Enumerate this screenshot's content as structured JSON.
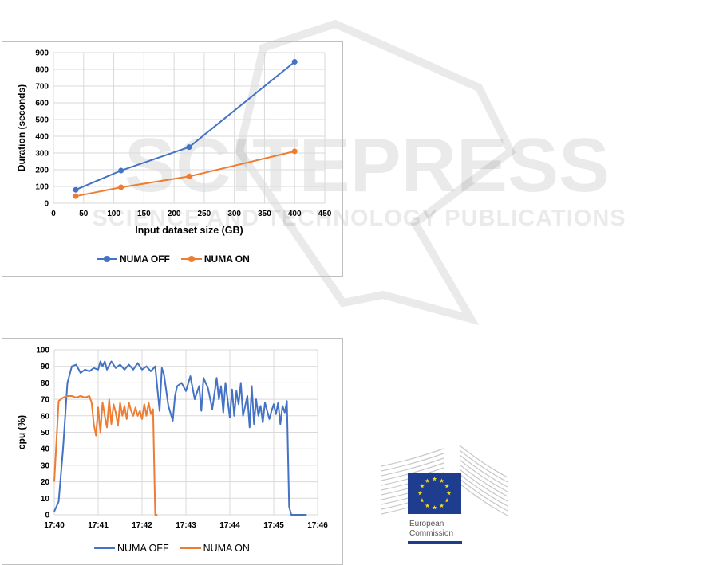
{
  "watermark": {
    "title": "SCITEPRESS",
    "subtitle": "SCIENCE AND TECHNOLOGY PUBLICATIONS"
  },
  "logo": {
    "line1": "European",
    "line2": "Commission",
    "flag_color": "#1f3d8f",
    "star_color": "#ffdd00"
  },
  "chart_data": [
    {
      "type": "line",
      "title": "",
      "xlabel": "Input dataset size (GB)",
      "ylabel": "Duration (seconds)",
      "xlim": [
        0,
        450
      ],
      "ylim": [
        0,
        900
      ],
      "xticks": [
        0,
        50,
        100,
        150,
        200,
        250,
        300,
        350,
        400,
        450
      ],
      "yticks": [
        0,
        100,
        200,
        300,
        400,
        500,
        600,
        700,
        800,
        900
      ],
      "grid": true,
      "legend": "bottom",
      "series": [
        {
          "name": "NUMA OFF",
          "color": "#4472c4",
          "markers": true,
          "x": [
            37,
            112,
            225,
            400
          ],
          "y": [
            80,
            195,
            335,
            845
          ]
        },
        {
          "name": "NUMA ON",
          "color": "#ed7d31",
          "markers": true,
          "x": [
            37,
            112,
            225,
            400
          ],
          "y": [
            42,
            95,
            160,
            310
          ]
        }
      ]
    },
    {
      "type": "line",
      "title": "",
      "xlabel": "",
      "ylabel": "cpu (%)",
      "xlim": [
        0,
        6
      ],
      "ylim": [
        0,
        100
      ],
      "xticks": [
        0,
        1,
        2,
        3,
        4,
        5,
        6
      ],
      "xticklabels": [
        "17:40",
        "17:41",
        "17:42",
        "17:43",
        "17:44",
        "17:45",
        "17:46"
      ],
      "yticks": [
        0,
        10,
        20,
        30,
        40,
        50,
        60,
        70,
        80,
        90,
        100
      ],
      "grid": true,
      "legend": "bottom",
      "series": [
        {
          "name": "NUMA OFF",
          "color": "#4472c4",
          "markers": false,
          "x": [
            0,
            0.1,
            0.2,
            0.3,
            0.4,
            0.5,
            0.6,
            0.7,
            0.8,
            0.9,
            1.0,
            1.05,
            1.1,
            1.15,
            1.2,
            1.3,
            1.4,
            1.5,
            1.6,
            1.7,
            1.8,
            1.9,
            2.0,
            2.1,
            2.2,
            2.3,
            2.4,
            2.45,
            2.5,
            2.6,
            2.7,
            2.75,
            2.8,
            2.9,
            3.0,
            3.1,
            3.2,
            3.3,
            3.35,
            3.4,
            3.5,
            3.6,
            3.7,
            3.75,
            3.8,
            3.85,
            3.9,
            4.0,
            4.05,
            4.1,
            4.15,
            4.2,
            4.25,
            4.3,
            4.4,
            4.45,
            4.5,
            4.55,
            4.6,
            4.65,
            4.7,
            4.75,
            4.8,
            4.9,
            4.95,
            5.0,
            5.05,
            5.1,
            5.15,
            5.2,
            5.25,
            5.3,
            5.35,
            5.4,
            5.45,
            5.5,
            5.55,
            5.6,
            5.65,
            5.7,
            5.75
          ],
          "y": [
            2,
            8,
            40,
            80,
            90,
            91,
            86,
            88,
            87,
            89,
            88,
            93,
            90,
            93,
            88,
            93,
            89,
            91,
            88,
            91,
            88,
            92,
            88,
            90,
            87,
            90,
            63,
            89,
            85,
            66,
            57,
            72,
            78,
            80,
            75,
            84,
            70,
            78,
            63,
            83,
            77,
            64,
            83,
            70,
            78,
            62,
            80,
            59,
            76,
            60,
            75,
            67,
            80,
            60,
            72,
            53,
            78,
            55,
            70,
            60,
            66,
            56,
            68,
            58,
            63,
            67,
            61,
            68,
            55,
            66,
            62,
            69,
            5,
            0,
            0,
            0,
            0,
            0,
            0,
            0,
            0
          ]
        },
        {
          "name": "NUMA ON",
          "color": "#ed7d31",
          "markers": false,
          "x": [
            0,
            0.1,
            0.2,
            0.3,
            0.4,
            0.5,
            0.6,
            0.7,
            0.8,
            0.85,
            0.9,
            0.95,
            1.0,
            1.05,
            1.1,
            1.15,
            1.2,
            1.25,
            1.3,
            1.35,
            1.4,
            1.45,
            1.5,
            1.55,
            1.6,
            1.65,
            1.7,
            1.75,
            1.8,
            1.85,
            1.9,
            1.95,
            2.0,
            2.05,
            2.1,
            2.15,
            2.2,
            2.25,
            2.3,
            2.35
          ],
          "y": [
            20,
            69,
            71,
            72,
            72,
            71,
            72,
            71,
            72,
            68,
            55,
            48,
            65,
            50,
            68,
            60,
            53,
            70,
            55,
            67,
            62,
            54,
            68,
            60,
            66,
            58,
            68,
            63,
            60,
            65,
            60,
            63,
            58,
            67,
            60,
            68,
            61,
            64,
            0,
            0
          ]
        }
      ]
    }
  ]
}
